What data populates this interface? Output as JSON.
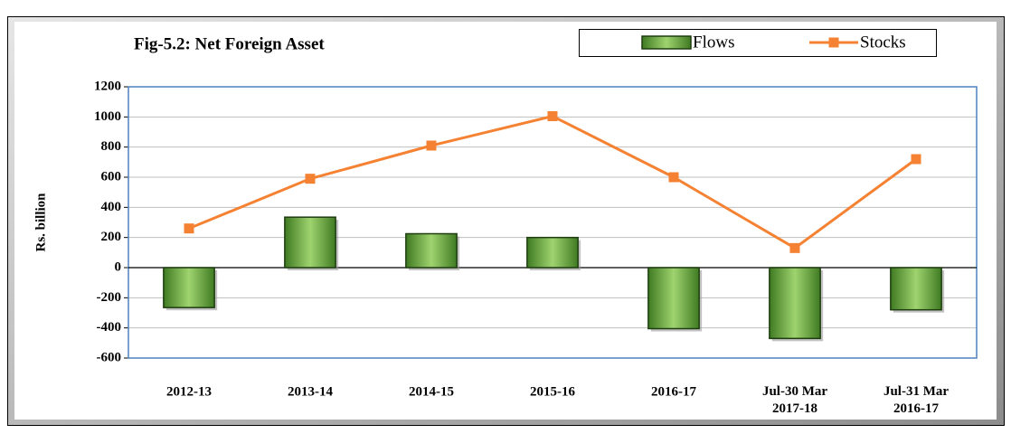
{
  "chart_data": {
    "type": "bar-line",
    "title": "Fig-5.2: Net Foreign Asset",
    "y_label": "Rs. billion",
    "categories": [
      "2012-13",
      "2013-14",
      "2014-15",
      "2015-16",
      "2016-17",
      "Jul-30 Mar\n2017-18",
      "Jul-31 Mar\n2016-17"
    ],
    "series": [
      {
        "name": "Flows",
        "type": "bar",
        "color": "#6aa842",
        "values": [
          -265,
          335,
          225,
          200,
          -405,
          -470,
          -280
        ]
      },
      {
        "name": "Stocks",
        "type": "line",
        "color": "#f58232",
        "values": [
          260,
          590,
          810,
          1005,
          600,
          130,
          720
        ]
      }
    ],
    "ylim": [
      -600,
      1200
    ],
    "yticks": [
      -600,
      -400,
      -200,
      0,
      200,
      400,
      600,
      800,
      1000,
      1200
    ],
    "grid": true,
    "legend": "top-right"
  }
}
